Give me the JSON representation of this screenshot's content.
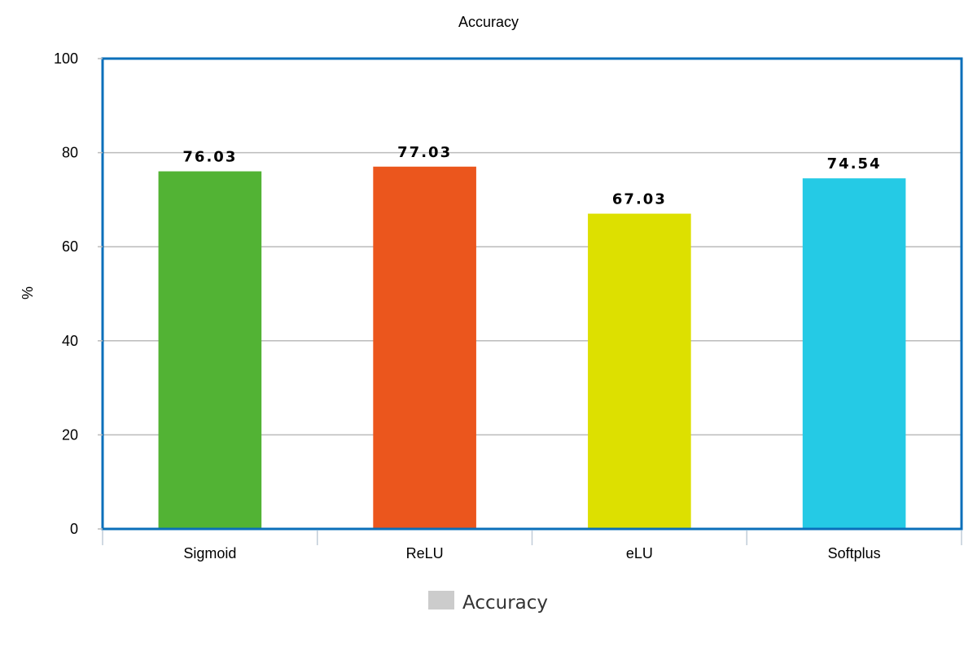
{
  "chart_data": {
    "type": "bar",
    "title": "Accuracy",
    "xlabel": "",
    "ylabel": "%",
    "categories": [
      "Sigmoid",
      "ReLU",
      "eLU",
      "Softplus"
    ],
    "series": [
      {
        "name": "Accuracy",
        "values": [
          76.03,
          77.03,
          67.03,
          74.54
        ],
        "value_labels": [
          "76.03",
          "77.03",
          "67.03",
          "74.54"
        ]
      }
    ],
    "bar_colors": [
      "#52b334",
      "#eb561d",
      "#dde000",
      "#25cae5"
    ],
    "ylim": [
      0,
      100
    ],
    "yticks": [
      0,
      20,
      40,
      60,
      80,
      100
    ],
    "ytick_labels": [
      "0",
      "20",
      "40",
      "60",
      "80",
      "100"
    ],
    "grid": true,
    "legend": {
      "position": "bottom",
      "label": "Accuracy",
      "swatch_color": "#cccccc"
    },
    "frame_color": "#0a6fba",
    "grid_color": "#bbbbbb"
  }
}
